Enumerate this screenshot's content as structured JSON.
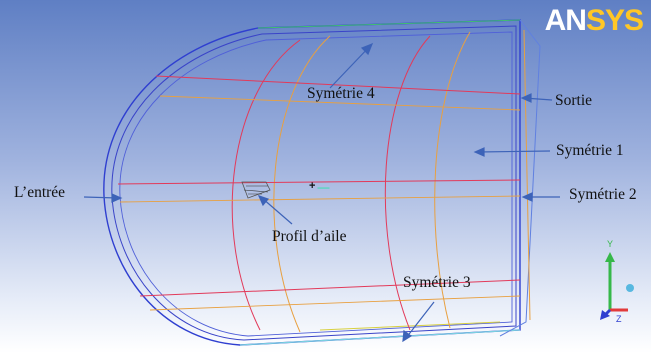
{
  "logo": {
    "part1": "AN",
    "part2": "SYS"
  },
  "labels": {
    "symetrie4": "Symétrie 4",
    "sortie": "Sortie",
    "symetrie1": "Symétrie 1",
    "entree": "L’entrée",
    "symetrie2": "Symétrie 2",
    "profil": "Profil d’aile",
    "symetrie3": "Symétrie 3"
  },
  "origin": {
    "marker": "+"
  },
  "axes": {
    "y": "Y",
    "z": "Z"
  },
  "colors": {
    "background_top": "#5f7fc4",
    "background_bottom": "#ffffff",
    "edge_blue": "#2f3fd0",
    "edge_red": "#e23a5a",
    "edge_orange": "#e8a040",
    "edge_green": "#42c070",
    "arrow": "#3d63b8"
  }
}
